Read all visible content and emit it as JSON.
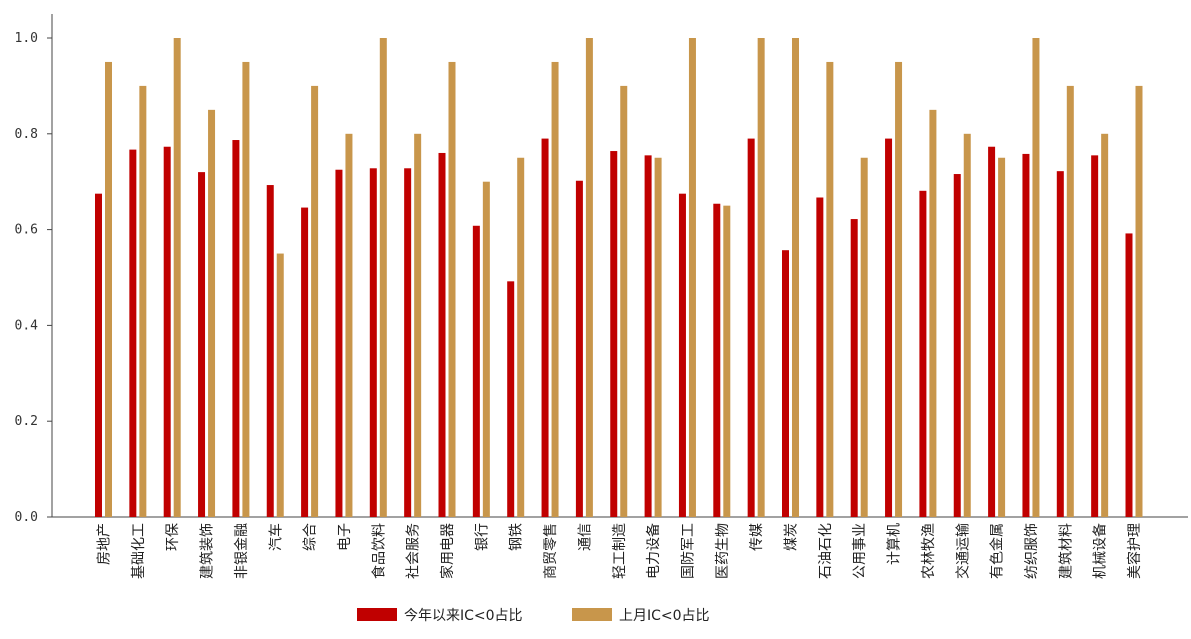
{
  "chart_data": {
    "type": "bar",
    "categories": [
      "房地产",
      "基础化工",
      "环保",
      "建筑装饰",
      "非银金融",
      "汽车",
      "综合",
      "电子",
      "食品饮料",
      "社会服务",
      "家用电器",
      "银行",
      "钢铁",
      "商贸零售",
      "通信",
      "轻工制造",
      "电力设备",
      "国防军工",
      "医药生物",
      "传媒",
      "煤炭",
      "石油石化",
      "公用事业",
      "计算机",
      "农林牧渔",
      "交通运输",
      "有色金属",
      "纺织服饰",
      "建筑材料",
      "机械设备",
      "美容护理"
    ],
    "series": [
      {
        "name": "今年以来IC<0占比",
        "color": "#c00000",
        "values": [
          0.675,
          0.767,
          0.773,
          0.72,
          0.787,
          0.693,
          0.646,
          0.725,
          0.728,
          0.728,
          0.76,
          0.608,
          0.492,
          0.79,
          0.702,
          0.764,
          0.755,
          0.675,
          0.654,
          0.79,
          0.557,
          0.667,
          0.622,
          0.79,
          0.681,
          0.716,
          0.773,
          0.758,
          0.722,
          0.755,
          0.592
        ]
      },
      {
        "name": "上月IC<0占比",
        "color": "#c8964b",
        "values": [
          0.95,
          0.9,
          1.0,
          0.85,
          0.95,
          0.55,
          0.9,
          0.8,
          1.0,
          0.8,
          0.95,
          0.7,
          0.75,
          0.95,
          1.0,
          0.9,
          0.75,
          1.0,
          0.65,
          1.0,
          1.0,
          0.95,
          0.75,
          0.95,
          0.85,
          0.8,
          0.75,
          1.0,
          0.9,
          0.8,
          0.9
        ]
      }
    ],
    "ylim": [
      0,
      1.05
    ],
    "yticks": [
      "0.0",
      "0.2",
      "0.4",
      "0.6",
      "0.8",
      "1.0"
    ],
    "legend_position": "bottom-center",
    "grid": false
  }
}
